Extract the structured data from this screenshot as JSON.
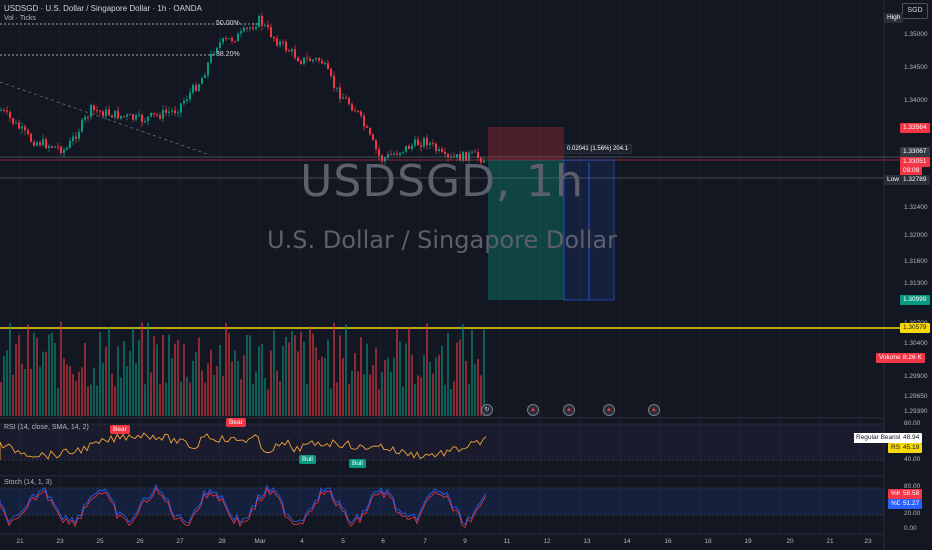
{
  "header": {
    "title": "USDSGD · U.S. Dollar / Singapore Dollar · 1h · OANDA",
    "vol_label": "Vol · Ticks"
  },
  "watermark": {
    "symbol": "USDSGD, 1h",
    "name": "U.S. Dollar / Singapore Dollar"
  },
  "currency": "SGD",
  "price_axis": [
    "1.35000",
    "1.34500",
    "1.34000",
    "1.32400",
    "1.32000",
    "1.31600",
    "1.31300",
    "1.30700",
    "1.30400",
    "1.29900",
    "1.29650",
    "1.29390"
  ],
  "price_tags": {
    "high": {
      "label": "High",
      "value": ""
    },
    "target_red": "1.33564",
    "current1": "1.33067",
    "current2": "1.33051",
    "countdown": "09:09",
    "low": {
      "label": "Low",
      "value": "1.32789"
    },
    "stop_green": "1.30999",
    "yellow": "1.30579",
    "volume": {
      "label": "Volume",
      "value": "8.26 K"
    }
  },
  "fib": {
    "f50": "50.00%",
    "f382": "38.20%"
  },
  "trade": {
    "text": "0.02041 (1.56%) 204.1"
  },
  "rsi": {
    "label": "RSI (14, close, SMA, 14, 2)",
    "axis": [
      "80.00",
      "40.00"
    ],
    "bear1": "Bear",
    "bear2": "Bear",
    "bull1": "Bull",
    "bull2": "Bull",
    "legend_text": "Regular Bearish",
    "legend_value": "48.94",
    "rsi_tag": "RSI",
    "rsi_value": "45.19"
  },
  "stoch": {
    "label": "Stoch (14, 1, 3)",
    "axis": [
      "80.00",
      "20.00",
      "0.00"
    ],
    "k_tag": "%K",
    "k_value": "58.58",
    "d_tag": "%D",
    "d_value": "51.27"
  },
  "x_labels": [
    "21",
    "23",
    "25",
    "26",
    "27",
    "28",
    "Mar",
    "4",
    "5",
    "6",
    "7",
    "9",
    "11",
    "12",
    "13",
    "14",
    "16",
    "18",
    "19",
    "20",
    "21",
    "23"
  ],
  "colors": {
    "bg": "#131722",
    "up": "#089981",
    "down": "#f23645",
    "yellow": "#f5d90a",
    "rsi": "#f0a33a",
    "stoch_k": "#2962ff",
    "stoch_d": "#f23645"
  }
}
